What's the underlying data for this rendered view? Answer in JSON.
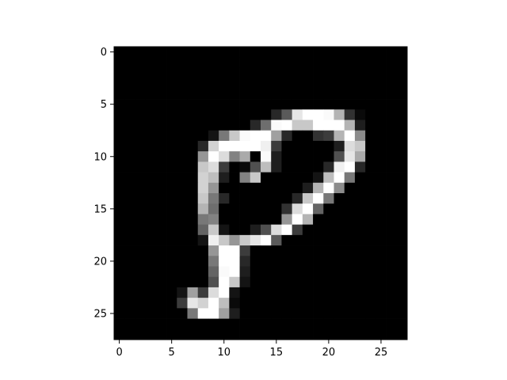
{
  "chart_data": {
    "type": "heatmap",
    "title": "",
    "xlabel": "",
    "ylabel": "",
    "colormap": "gray",
    "value_range": [
      0,
      255
    ],
    "rows": 28,
    "cols": 28,
    "xlim": [
      -0.5,
      27.5
    ],
    "ylim": [
      27.5,
      -0.5
    ],
    "xticks": [
      0,
      5,
      10,
      15,
      20,
      25
    ],
    "yticks": [
      0,
      5,
      10,
      15,
      20,
      25
    ],
    "xtick_labels": [
      "0",
      "5",
      "10",
      "15",
      "20",
      "25"
    ],
    "ytick_labels": [
      "0",
      "5",
      "10",
      "15",
      "20",
      "25"
    ],
    "pixels": [
      [
        0,
        0,
        0,
        0,
        0,
        0,
        0,
        0,
        0,
        0,
        0,
        0,
        0,
        0,
        0,
        0,
        0,
        0,
        0,
        0,
        0,
        0,
        0,
        0,
        0,
        0,
        0,
        0
      ],
      [
        0,
        0,
        0,
        0,
        0,
        0,
        0,
        0,
        0,
        0,
        0,
        0,
        0,
        0,
        0,
        0,
        0,
        0,
        0,
        0,
        0,
        0,
        0,
        0,
        0,
        0,
        0,
        0
      ],
      [
        0,
        0,
        0,
        0,
        0,
        0,
        0,
        0,
        0,
        0,
        0,
        0,
        0,
        0,
        0,
        0,
        0,
        0,
        0,
        0,
        0,
        0,
        0,
        0,
        0,
        0,
        0,
        0
      ],
      [
        0,
        0,
        0,
        0,
        0,
        0,
        0,
        0,
        0,
        0,
        0,
        0,
        0,
        0,
        0,
        0,
        0,
        0,
        0,
        0,
        0,
        0,
        0,
        0,
        0,
        0,
        0,
        0
      ],
      [
        0,
        0,
        0,
        0,
        0,
        0,
        0,
        0,
        0,
        0,
        0,
        0,
        0,
        0,
        0,
        0,
        0,
        0,
        0,
        0,
        0,
        0,
        0,
        0,
        0,
        0,
        0,
        0
      ],
      [
        0,
        0,
        0,
        0,
        0,
        0,
        0,
        0,
        0,
        0,
        0,
        0,
        0,
        0,
        0,
        0,
        0,
        0,
        0,
        0,
        0,
        0,
        0,
        0,
        0,
        0,
        0,
        0
      ],
      [
        0,
        0,
        0,
        0,
        0,
        0,
        0,
        0,
        0,
        0,
        0,
        0,
        0,
        0,
        0,
        40,
        90,
        230,
        255,
        255,
        250,
        180,
        50,
        10,
        0,
        0,
        0,
        0
      ],
      [
        0,
        0,
        0,
        0,
        0,
        0,
        0,
        0,
        0,
        0,
        0,
        0,
        0,
        40,
        110,
        250,
        255,
        200,
        200,
        255,
        255,
        255,
        180,
        30,
        0,
        0,
        0,
        0
      ],
      [
        0,
        0,
        0,
        0,
        0,
        0,
        0,
        0,
        0,
        20,
        120,
        200,
        250,
        255,
        255,
        160,
        40,
        0,
        0,
        50,
        60,
        180,
        255,
        140,
        0,
        0,
        0,
        0
      ],
      [
        0,
        0,
        0,
        0,
        0,
        0,
        0,
        0,
        40,
        210,
        255,
        255,
        255,
        255,
        240,
        60,
        0,
        0,
        0,
        0,
        0,
        30,
        220,
        200,
        0,
        0,
        0,
        0
      ],
      [
        0,
        0,
        0,
        0,
        0,
        0,
        0,
        0,
        150,
        255,
        220,
        130,
        170,
        0,
        250,
        30,
        0,
        0,
        0,
        0,
        0,
        80,
        230,
        170,
        0,
        0,
        0,
        0
      ],
      [
        0,
        0,
        0,
        0,
        0,
        0,
        0,
        0,
        200,
        220,
        60,
        0,
        10,
        80,
        190,
        30,
        0,
        0,
        0,
        0,
        40,
        240,
        255,
        40,
        0,
        0,
        0,
        0
      ],
      [
        0,
        0,
        0,
        0,
        0,
        0,
        0,
        0,
        210,
        190,
        30,
        0,
        130,
        200,
        0,
        0,
        0,
        0,
        0,
        20,
        190,
        255,
        120,
        0,
        0,
        0,
        0,
        0
      ],
      [
        0,
        0,
        0,
        0,
        0,
        0,
        0,
        0,
        210,
        150,
        0,
        0,
        0,
        0,
        0,
        0,
        0,
        0,
        30,
        180,
        255,
        140,
        0,
        0,
        0,
        0,
        0,
        0
      ],
      [
        0,
        0,
        0,
        0,
        0,
        0,
        0,
        0,
        200,
        120,
        40,
        0,
        0,
        0,
        0,
        0,
        0,
        40,
        200,
        255,
        120,
        0,
        0,
        0,
        0,
        0,
        0,
        0
      ],
      [
        0,
        0,
        0,
        0,
        0,
        0,
        0,
        0,
        180,
        110,
        0,
        0,
        0,
        0,
        0,
        0,
        50,
        220,
        255,
        100,
        0,
        0,
        0,
        0,
        0,
        0,
        0,
        0
      ],
      [
        0,
        0,
        0,
        0,
        0,
        0,
        0,
        0,
        120,
        130,
        0,
        0,
        0,
        0,
        0,
        0,
        150,
        255,
        180,
        0,
        0,
        0,
        0,
        0,
        0,
        0,
        0,
        0
      ],
      [
        0,
        0,
        0,
        0,
        0,
        0,
        0,
        0,
        100,
        200,
        20,
        0,
        0,
        30,
        80,
        220,
        255,
        60,
        0,
        0,
        0,
        0,
        0,
        0,
        0,
        0,
        0,
        0
      ],
      [
        0,
        0,
        0,
        0,
        0,
        0,
        0,
        0,
        20,
        240,
        200,
        150,
        200,
        230,
        255,
        90,
        0,
        0,
        0,
        0,
        0,
        0,
        0,
        0,
        0,
        0,
        0,
        0
      ],
      [
        0,
        0,
        0,
        0,
        0,
        0,
        0,
        0,
        0,
        150,
        255,
        255,
        60,
        0,
        0,
        0,
        0,
        0,
        0,
        0,
        0,
        0,
        0,
        0,
        0,
        0,
        0,
        0
      ],
      [
        0,
        0,
        0,
        0,
        0,
        0,
        0,
        0,
        0,
        120,
        255,
        255,
        40,
        0,
        0,
        0,
        0,
        0,
        0,
        0,
        0,
        0,
        0,
        0,
        0,
        0,
        0,
        0
      ],
      [
        0,
        0,
        0,
        0,
        0,
        0,
        0,
        0,
        0,
        100,
        250,
        255,
        30,
        0,
        0,
        0,
        0,
        0,
        0,
        0,
        0,
        0,
        0,
        0,
        0,
        0,
        0,
        0
      ],
      [
        0,
        0,
        0,
        0,
        0,
        0,
        0,
        0,
        0,
        80,
        255,
        200,
        20,
        0,
        0,
        0,
        0,
        0,
        0,
        0,
        0,
        0,
        0,
        0,
        0,
        0,
        0,
        0
      ],
      [
        0,
        0,
        0,
        0,
        0,
        0,
        20,
        160,
        60,
        220,
        255,
        20,
        0,
        0,
        0,
        0,
        0,
        0,
        0,
        0,
        0,
        0,
        0,
        0,
        0,
        0,
        0,
        0
      ],
      [
        0,
        0,
        0,
        0,
        0,
        0,
        60,
        230,
        210,
        255,
        190,
        10,
        0,
        0,
        0,
        0,
        0,
        0,
        0,
        0,
        0,
        0,
        0,
        0,
        0,
        0,
        0,
        0
      ],
      [
        0,
        0,
        0,
        0,
        0,
        0,
        0,
        120,
        255,
        255,
        160,
        30,
        0,
        0,
        0,
        0,
        0,
        0,
        0,
        0,
        0,
        0,
        0,
        0,
        0,
        0,
        0,
        0
      ],
      [
        0,
        0,
        0,
        0,
        0,
        0,
        0,
        0,
        0,
        0,
        0,
        0,
        0,
        0,
        0,
        0,
        0,
        0,
        0,
        0,
        0,
        0,
        0,
        0,
        0,
        0,
        0,
        0
      ],
      [
        0,
        0,
        0,
        0,
        0,
        0,
        0,
        0,
        0,
        0,
        0,
        0,
        0,
        0,
        0,
        0,
        0,
        0,
        0,
        0,
        0,
        0,
        0,
        0,
        0,
        0,
        0,
        0
      ]
    ]
  }
}
